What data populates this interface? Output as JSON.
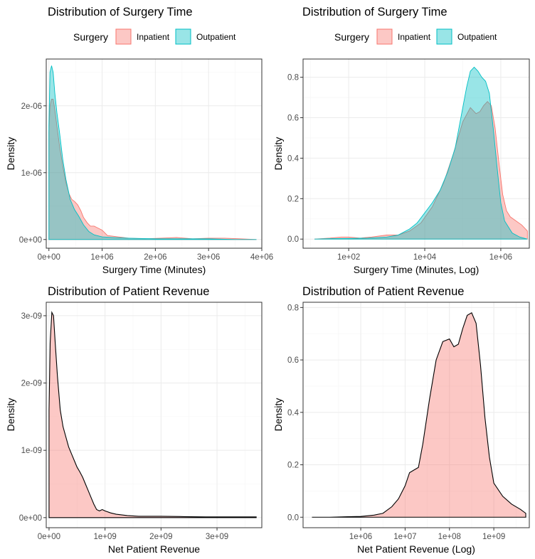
{
  "chart_data": [
    {
      "type": "area",
      "title": "Distribution of Surgery Time",
      "xlabel": "Surgery Time (Minutes)",
      "ylabel": "Density",
      "x_scale": "linear",
      "xlim": [
        -50000,
        4000000
      ],
      "ylim": [
        -1.3e-07,
        2.7e-06
      ],
      "x_ticks": [
        0,
        1000000,
        2000000,
        3000000,
        4000000
      ],
      "x_tick_labels": [
        "0e+00",
        "1e+06",
        "2e+06",
        "3e+06",
        "4e+06"
      ],
      "y_ticks": [
        0,
        1e-06,
        2e-06
      ],
      "y_tick_labels": [
        "0e+00",
        "1e-06",
        "2e-06"
      ],
      "grid": true,
      "legend": {
        "title": "Surgery",
        "placement": "top",
        "entries": [
          "Inpatient",
          "Outpatient"
        ]
      },
      "series": [
        {
          "name": "Inpatient",
          "fill": "#F8766D",
          "x": [
            0,
            20000,
            50000,
            80000,
            110000,
            150000,
            200000,
            260000,
            320000,
            380000,
            430000,
            480000,
            540000,
            600000,
            650000,
            720000,
            780000,
            850000,
            900000,
            1000000,
            1100000,
            1300000,
            1500000,
            1800000,
            2100000,
            2400000,
            2700000,
            3000000,
            3300000,
            3600000,
            3900000
          ],
          "y": [
            1.6e-06,
            2e-06,
            2.1e-06,
            2.1e-06,
            1.95e-06,
            1.7e-06,
            1.4e-06,
            1.1e-06,
            8.5e-07,
            6.8e-07,
            6e-07,
            5.7e-07,
            5.2e-07,
            4.3e-07,
            3.3e-07,
            2.5e-07,
            2e-07,
            2e-07,
            1.8e-07,
            1.4e-07,
            6e-08,
            4e-08,
            2e-08,
            1e-08,
            2e-08,
            3e-08,
            1e-08,
            2e-08,
            2e-08,
            1e-08,
            0.0
          ]
        },
        {
          "name": "Outpatient",
          "fill": "#00BFC4",
          "x": [
            0,
            20000,
            50000,
            80000,
            110000,
            150000,
            200000,
            260000,
            320000,
            400000,
            480000,
            560000,
            650000,
            750000,
            850000,
            1000000,
            1200000,
            1500000,
            2000000,
            2500000,
            3000000,
            3500000,
            3900000
          ],
          "y": [
            1.7e-06,
            2.5e-06,
            2.6e-06,
            2.5e-06,
            2.2e-06,
            1.9e-06,
            1.6e-06,
            1.2e-06,
            9e-07,
            6e-07,
            4.5e-07,
            3.5e-07,
            2.2e-07,
            1.2e-07,
            7e-08,
            4e-08,
            3e-08,
            2e-08,
            1e-08,
            1e-08,
            1e-08,
            0.0,
            0.0
          ]
        }
      ]
    },
    {
      "type": "area",
      "title": "Distribution of Surgery Time",
      "xlabel": "Surgery Time (Minutes, Log)",
      "ylabel": "Density",
      "x_scale": "log10",
      "xlim": [
        0.8,
        6.75
      ],
      "ylim": [
        -0.045,
        0.89
      ],
      "x_ticks": [
        2,
        4,
        6
      ],
      "x_tick_labels": [
        "1e+02",
        "1e+04",
        "1e+06"
      ],
      "y_ticks": [
        0,
        0.2,
        0.4,
        0.6,
        0.8
      ],
      "y_tick_labels": [
        "0.0",
        "0.2",
        "0.4",
        "0.6",
        "0.8"
      ],
      "grid": true,
      "legend": {
        "title": "Surgery",
        "placement": "top",
        "entries": [
          "Inpatient",
          "Outpatient"
        ]
      },
      "series": [
        {
          "name": "Inpatient",
          "fill": "#F8766D",
          "x": [
            1.1,
            1.5,
            1.8,
            2.0,
            2.3,
            2.6,
            3.0,
            3.3,
            3.6,
            3.9,
            4.2,
            4.5,
            4.75,
            5.0,
            5.2,
            5.35,
            5.45,
            5.55,
            5.65,
            5.75,
            5.85,
            5.95,
            6.05,
            6.15,
            6.25,
            6.4,
            6.55,
            6.7
          ],
          "y": [
            0.0,
            0.005,
            0.01,
            0.01,
            0.005,
            0.01,
            0.02,
            0.02,
            0.04,
            0.08,
            0.16,
            0.28,
            0.42,
            0.58,
            0.65,
            0.62,
            0.63,
            0.66,
            0.68,
            0.66,
            0.55,
            0.38,
            0.22,
            0.14,
            0.11,
            0.09,
            0.07,
            0.04
          ]
        },
        {
          "name": "Outpatient",
          "fill": "#00BFC4",
          "x": [
            1.1,
            1.5,
            2.0,
            2.5,
            3.0,
            3.3,
            3.6,
            3.8,
            4.0,
            4.2,
            4.4,
            4.6,
            4.8,
            4.95,
            5.1,
            5.2,
            5.3,
            5.4,
            5.5,
            5.6,
            5.7,
            5.8,
            5.9,
            6.0,
            6.1,
            6.3,
            6.5,
            6.7
          ],
          "y": [
            0.0,
            0.002,
            0.003,
            0.005,
            0.01,
            0.02,
            0.05,
            0.08,
            0.13,
            0.18,
            0.24,
            0.33,
            0.45,
            0.6,
            0.75,
            0.83,
            0.85,
            0.83,
            0.8,
            0.78,
            0.72,
            0.55,
            0.36,
            0.18,
            0.09,
            0.03,
            0.01,
            0.0
          ]
        }
      ]
    },
    {
      "type": "area",
      "title": "Distribution of Patient Revenue",
      "xlabel": "Net Patient Revenue",
      "ylabel": "Density",
      "x_scale": "linear",
      "xlim": [
        -50000000,
        3800000000
      ],
      "ylim": [
        -1.5e-10,
        3.2e-09
      ],
      "x_ticks": [
        0,
        1000000000,
        2000000000,
        3000000000
      ],
      "x_tick_labels": [
        "0e+00",
        "1e+09",
        "2e+09",
        "3e+09"
      ],
      "y_ticks": [
        0,
        1e-09,
        2e-09,
        3e-09
      ],
      "y_tick_labels": [
        "0e+00",
        "1e-09",
        "2e-09",
        "3e-09"
      ],
      "grid": true,
      "series": [
        {
          "name": "",
          "fill": "#F8766D",
          "x": [
            0,
            20000000,
            50000000,
            80000000,
            110000000,
            150000000,
            200000000,
            250000000,
            300000000,
            350000000,
            400000000,
            450000000,
            500000000,
            550000000,
            600000000,
            650000000,
            700000000,
            750000000,
            800000000,
            850000000,
            900000000,
            950000000,
            1000000000,
            1100000000,
            1200000000,
            1400000000,
            1600000000,
            1800000000,
            2000000000,
            2400000000,
            2800000000,
            3200000000,
            3600000000,
            3700000000
          ],
          "y": [
            1.6e-09,
            2.6e-09,
            3.05e-09,
            3e-09,
            2.6e-09,
            2.1e-09,
            1.6e-09,
            1.35e-09,
            1.2e-09,
            1.05e-09,
            9.5e-10,
            8.5e-10,
            7.5e-10,
            6.8e-10,
            6e-10,
            5e-10,
            4e-10,
            3e-10,
            2e-10,
            1.2e-10,
            1e-10,
            1.2e-10,
            1e-10,
            7e-11,
            5e-11,
            3e-11,
            2e-11,
            2e-11,
            2e-11,
            1.5e-11,
            1e-11,
            1e-11,
            1e-11,
            1e-11
          ]
        }
      ]
    },
    {
      "type": "area",
      "title": "Distribution of Patient Revenue",
      "xlabel": "Net Patient Revenue (Log)",
      "ylabel": "Density",
      "x_scale": "log10",
      "xlim": [
        4.7,
        9.8
      ],
      "ylim": [
        -0.04,
        0.82
      ],
      "x_ticks": [
        6,
        7,
        8,
        9
      ],
      "x_tick_labels": [
        "1e+06",
        "1e+07",
        "1e+08",
        "1e+09"
      ],
      "y_ticks": [
        0,
        0.2,
        0.4,
        0.6,
        0.8
      ],
      "y_tick_labels": [
        "0.0",
        "0.2",
        "0.4",
        "0.6",
        "0.8"
      ],
      "grid": true,
      "series": [
        {
          "name": "",
          "fill": "#F8766D",
          "x": [
            4.9,
            5.3,
            5.7,
            6.0,
            6.3,
            6.5,
            6.7,
            6.85,
            7.0,
            7.1,
            7.2,
            7.3,
            7.4,
            7.55,
            7.7,
            7.85,
            8.0,
            8.1,
            8.2,
            8.3,
            8.4,
            8.5,
            8.6,
            8.7,
            8.8,
            8.9,
            9.0,
            9.2,
            9.4,
            9.6,
            9.72
          ],
          "y": [
            0.0,
            0.0,
            0.002,
            0.003,
            0.008,
            0.015,
            0.04,
            0.07,
            0.12,
            0.17,
            0.18,
            0.19,
            0.28,
            0.45,
            0.6,
            0.67,
            0.68,
            0.65,
            0.66,
            0.72,
            0.77,
            0.78,
            0.74,
            0.58,
            0.38,
            0.23,
            0.13,
            0.08,
            0.05,
            0.03,
            0.015
          ]
        }
      ]
    }
  ]
}
